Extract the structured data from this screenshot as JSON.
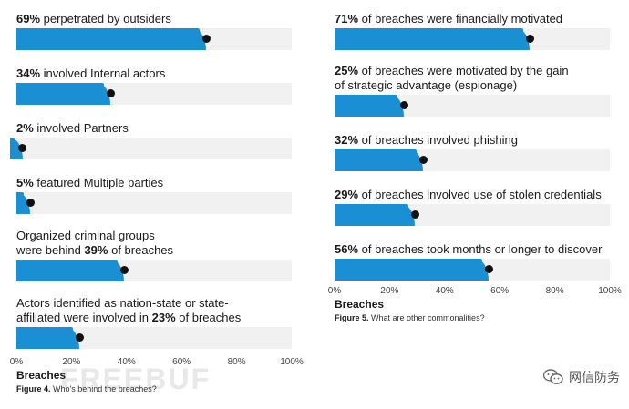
{
  "chart_data": [
    {
      "type": "bar",
      "orientation": "horizontal",
      "rows": [
        {
          "bold": "69%",
          "text": " perpetrated by outsiders",
          "value": 69
        },
        {
          "bold": "34%",
          "text": " involved Internal actors",
          "value": 34
        },
        {
          "bold": "2%",
          "text": " involved Partners",
          "value": 2
        },
        {
          "bold": "5%",
          "text": " featured Multiple parties",
          "value": 5
        },
        {
          "line1": "Organized criminal groups",
          "pre": "were behind ",
          "bold": "39%",
          "post": " of breaches",
          "value": 39
        },
        {
          "line1": "Actors identified as nation-state or state-",
          "pre": "affiliated were involved in ",
          "bold": "23%",
          "post": " of breaches",
          "value": 23
        }
      ],
      "xticks": [
        "0%",
        "20%",
        "40%",
        "60%",
        "80%",
        "100%"
      ],
      "xlim": [
        0,
        100
      ],
      "xlabel": "Breaches",
      "caption_bold": "Figure 4.",
      "caption_text": " Who's behind the breaches?"
    },
    {
      "type": "bar",
      "orientation": "horizontal",
      "rows": [
        {
          "bold": "71%",
          "text": " of breaches were financially motivated",
          "value": 71
        },
        {
          "bold": "25%",
          "text": " of breaches were motivated by the gain",
          "line2": "of strategic advantage (espionage)",
          "value": 25
        },
        {
          "bold": "32%",
          "text": " of breaches involved phishing",
          "value": 32
        },
        {
          "bold": "29%",
          "text": " of breaches involved use of stolen credentials",
          "value": 29
        },
        {
          "bold": "56%",
          "text": " of breaches took months or longer to discover",
          "value": 56
        }
      ],
      "xticks": [
        "0%",
        "20%",
        "40%",
        "60%",
        "80%",
        "100%"
      ],
      "xlim": [
        0,
        100
      ],
      "xlabel": "Breaches",
      "caption_bold": "Figure 5.",
      "caption_text": " What are other commonalities?"
    }
  ],
  "watermark": {
    "text": "网信防务",
    "ghost": "FREEBUF",
    "icon": "wechat-icon"
  },
  "colors": {
    "bar": "#1b8fd4",
    "track": "#f1f1f1",
    "marker": "#111111"
  }
}
